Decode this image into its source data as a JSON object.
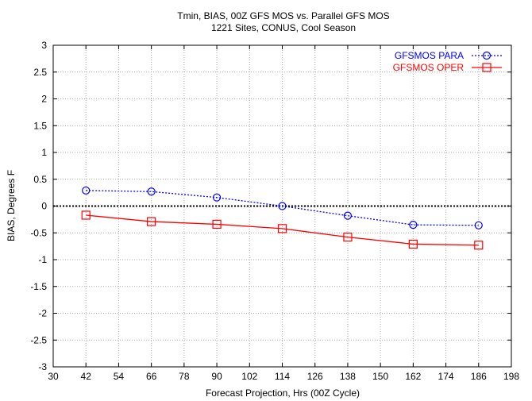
{
  "chart_data": {
    "type": "line",
    "title": "Tmin, BIAS, 00Z GFS MOS vs. Parallel GFS MOS",
    "subtitle": "1221 Sites, CONUS, Cool Season",
    "xlabel": "Forecast Projection, Hrs (00Z Cycle)",
    "ylabel": "BIAS, Degrees F",
    "xlim": [
      30,
      198
    ],
    "ylim": [
      -3,
      3
    ],
    "x_ticks": [
      30,
      42,
      54,
      66,
      78,
      90,
      102,
      114,
      126,
      138,
      150,
      162,
      174,
      186,
      198
    ],
    "y_ticks": [
      -3,
      -2.5,
      -2,
      -1.5,
      -1,
      -0.5,
      0,
      0.5,
      1,
      1.5,
      2,
      2.5,
      3
    ],
    "x_tick_labels": [
      "30",
      "42",
      "54",
      "66",
      "78",
      "90",
      "102",
      "114",
      "126",
      "138",
      "150",
      "162",
      "174",
      "186",
      "198"
    ],
    "y_tick_labels": [
      "-3",
      "-2.5",
      "-2",
      "-1.5",
      "-1",
      "-0.5",
      "0",
      "0.5",
      "1",
      "1.5",
      "2",
      "2.5",
      "3"
    ],
    "grid": true,
    "zero_line": true,
    "legend_position": "top-right",
    "x": [
      42,
      66,
      90,
      114,
      138,
      162,
      186
    ],
    "series": [
      {
        "name": "GFSMOS PARA",
        "color": "#0000ff",
        "line_style": "dotted",
        "marker": "circle",
        "values": [
          0.29,
          0.27,
          0.16,
          0.0,
          -0.18,
          -0.35,
          -0.36
        ]
      },
      {
        "name": "GFSMOS OPER",
        "color": "#ff0000",
        "line_style": "solid",
        "marker": "square",
        "values": [
          -0.17,
          -0.29,
          -0.34,
          -0.42,
          -0.58,
          -0.71,
          -0.73
        ]
      }
    ]
  }
}
